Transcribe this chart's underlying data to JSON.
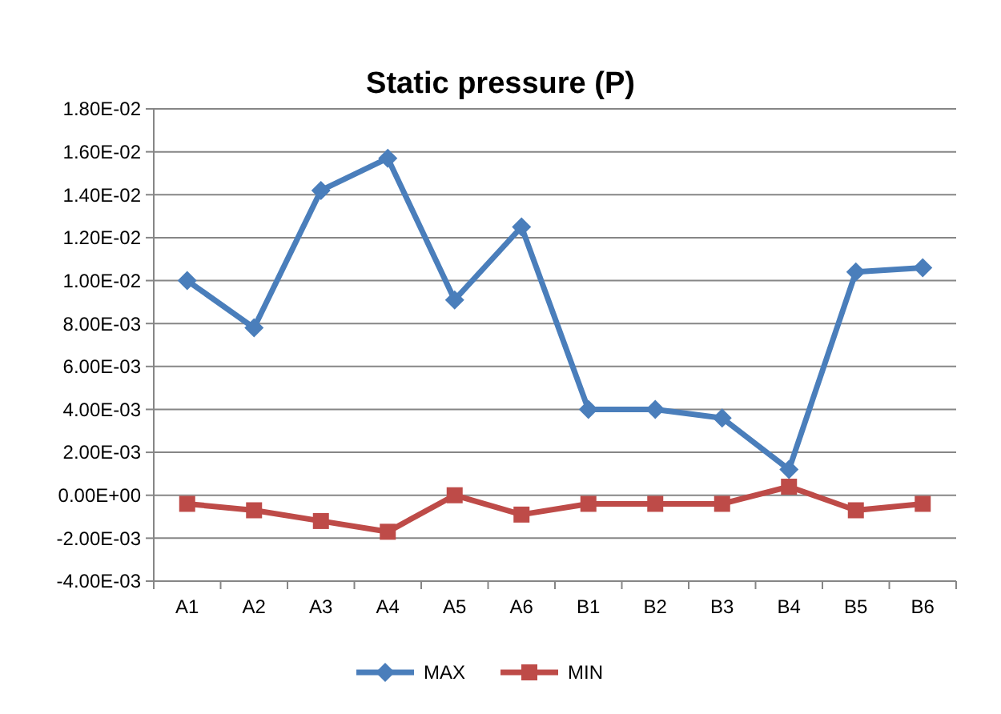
{
  "chart_data": {
    "type": "line",
    "title": "Static pressure (P)",
    "categories": [
      "A1",
      "A2",
      "A3",
      "A4",
      "A5",
      "A6",
      "B1",
      "B2",
      "B3",
      "B4",
      "B5",
      "B6"
    ],
    "series": [
      {
        "name": "MAX",
        "color": "#4a7ebb",
        "marker": "diamond",
        "values": [
          0.01,
          0.0078,
          0.0142,
          0.0157,
          0.0091,
          0.0125,
          0.004,
          0.004,
          0.0036,
          0.0012,
          0.0104,
          0.0106
        ]
      },
      {
        "name": "MIN",
        "color": "#be4b48",
        "marker": "square",
        "values": [
          -0.0004,
          -0.0007,
          -0.0012,
          -0.0017,
          0.0,
          -0.0009,
          -0.0004,
          -0.0004,
          -0.0004,
          0.0004,
          -0.0007,
          -0.0004
        ]
      }
    ],
    "ylim": [
      -0.004,
      0.018
    ],
    "yticks": [
      {
        "value": -0.004,
        "label": "-4.00E-03"
      },
      {
        "value": -0.002,
        "label": "-2.00E-03"
      },
      {
        "value": 0,
        "label": "0.00E+00"
      },
      {
        "value": 0.002,
        "label": "2.00E-03"
      },
      {
        "value": 0.004,
        "label": "4.00E-03"
      },
      {
        "value": 0.006,
        "label": "6.00E-03"
      },
      {
        "value": 0.008,
        "label": "8.00E-03"
      },
      {
        "value": 0.01,
        "label": "1.00E-02"
      },
      {
        "value": 0.012,
        "label": "1.20E-02"
      },
      {
        "value": 0.014,
        "label": "1.40E-02"
      },
      {
        "value": 0.016,
        "label": "1.60E-02"
      },
      {
        "value": 0.018,
        "label": "1.80E-02"
      }
    ],
    "grid": "y",
    "legend": "bottom",
    "line_style": "solid"
  }
}
